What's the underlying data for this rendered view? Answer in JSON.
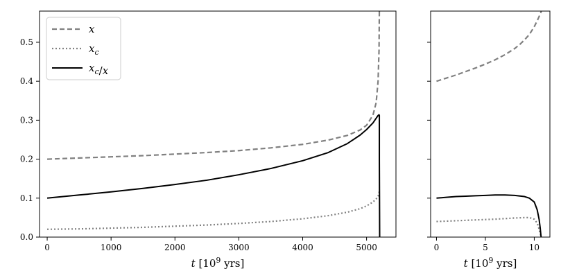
{
  "chart_data": [
    {
      "type": "line",
      "xlabel": "t [10⁹ yrs]",
      "ylabel": "",
      "xlim": [
        -120,
        5460
      ],
      "ylim": [
        0,
        0.58
      ],
      "xticks": [
        0,
        1000,
        2000,
        3000,
        4000,
        5000
      ],
      "xtick_labels": [
        "0",
        "1000",
        "2000",
        "3000",
        "4000",
        "5000"
      ],
      "yticks": [
        0.0,
        0.1,
        0.2,
        0.3,
        0.4,
        0.5
      ],
      "ytick_labels": [
        "0.0",
        "0.1",
        "0.2",
        "0.3",
        "0.4",
        "0.5"
      ],
      "grid": false,
      "legend_position": "top-left",
      "legend": [
        {
          "label": "x",
          "style": "dashed",
          "color": "#808080"
        },
        {
          "label": "x_c",
          "style": "dotted",
          "color": "#808080"
        },
        {
          "label": "x_c/x",
          "style": "solid",
          "color": "#000000"
        }
      ],
      "series": [
        {
          "name": "x",
          "style": "dashed",
          "color": "#808080",
          "x": [
            0,
            500,
            1000,
            1500,
            2000,
            2500,
            3000,
            3500,
            4000,
            4400,
            4700,
            4900,
            5000,
            5100,
            5150,
            5180,
            5195,
            5200
          ],
          "y": [
            0.2,
            0.203,
            0.206,
            0.209,
            0.213,
            0.217,
            0.222,
            0.229,
            0.238,
            0.249,
            0.261,
            0.275,
            0.287,
            0.313,
            0.345,
            0.4,
            0.48,
            0.58
          ]
        },
        {
          "name": "x_c",
          "style": "dotted",
          "color": "#808080",
          "x": [
            0,
            500,
            1000,
            1500,
            2000,
            2500,
            3000,
            3500,
            4000,
            4400,
            4700,
            4900,
            5000,
            5100,
            5150,
            5180,
            5195,
            5200
          ],
          "y": [
            0.02,
            0.021,
            0.023,
            0.025,
            0.028,
            0.031,
            0.035,
            0.04,
            0.047,
            0.055,
            0.064,
            0.073,
            0.08,
            0.09,
            0.098,
            0.105,
            0.112,
            0.122
          ]
        },
        {
          "name": "x_c/x",
          "style": "solid",
          "color": "#000000",
          "x": [
            0,
            500,
            1000,
            1500,
            2000,
            2500,
            3000,
            3500,
            4000,
            4400,
            4700,
            4900,
            5000,
            5100,
            5150,
            5180,
            5195,
            5200,
            5200,
            5205
          ],
          "y": [
            0.1,
            0.108,
            0.116,
            0.125,
            0.135,
            0.146,
            0.16,
            0.176,
            0.196,
            0.217,
            0.24,
            0.262,
            0.276,
            0.293,
            0.305,
            0.312,
            0.314,
            0.312,
            0.2,
            0.0
          ]
        }
      ]
    },
    {
      "type": "line",
      "xlabel": "t [10⁹ yrs]",
      "ylabel": "",
      "xlim": [
        -0.6,
        11.6
      ],
      "ylim": [
        0,
        0.58
      ],
      "xticks": [
        0,
        5,
        10
      ],
      "xtick_labels": [
        "0",
        "5",
        "10"
      ],
      "yticks": [
        0.0,
        0.1,
        0.2,
        0.3,
        0.4,
        0.5
      ],
      "ytick_labels": [],
      "grid": false,
      "series": [
        {
          "name": "x",
          "style": "dashed",
          "color": "#808080",
          "x": [
            0,
            1,
            2,
            3,
            4,
            5,
            6,
            7,
            8,
            8.5,
            9,
            9.5,
            10,
            10.3,
            10.6,
            10.8
          ],
          "y": [
            0.4,
            0.408,
            0.416,
            0.425,
            0.434,
            0.444,
            0.455,
            0.468,
            0.484,
            0.494,
            0.506,
            0.52,
            0.54,
            0.555,
            0.572,
            0.585
          ]
        },
        {
          "name": "x_c",
          "style": "dotted",
          "color": "#808080",
          "x": [
            0,
            2,
            4,
            6,
            8,
            9,
            9.5,
            10,
            10.3,
            10.5,
            10.7
          ],
          "y": [
            0.04,
            0.042,
            0.044,
            0.046,
            0.049,
            0.05,
            0.05,
            0.046,
            0.036,
            0.02,
            0.0
          ]
        },
        {
          "name": "x_c/x",
          "style": "solid",
          "color": "#000000",
          "x": [
            0,
            1,
            2,
            3,
            4,
            5,
            6,
            7,
            8,
            9,
            9.5,
            10,
            10.3,
            10.5,
            10.6,
            10.7
          ],
          "y": [
            0.1,
            0.102,
            0.104,
            0.105,
            0.106,
            0.107,
            0.108,
            0.108,
            0.107,
            0.104,
            0.1,
            0.09,
            0.07,
            0.045,
            0.025,
            0.0
          ]
        }
      ]
    }
  ]
}
